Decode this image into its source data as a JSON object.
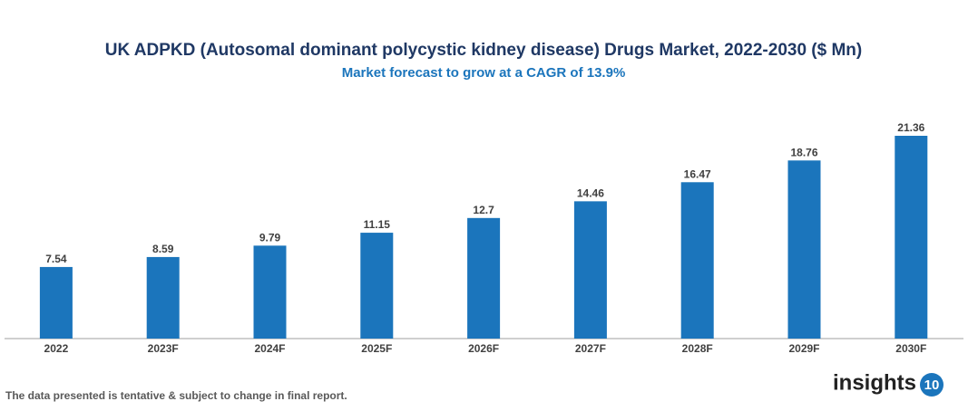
{
  "chart_data": {
    "type": "bar",
    "title": "UK ADPKD (Autosomal dominant polycystic kidney disease) Drugs Market, 2022-2030 ($ Mn)",
    "subtitle": "Market forecast to grow at a CAGR of 13.9%",
    "categories": [
      "2022",
      "2023F",
      "2024F",
      "2025F",
      "2026F",
      "2027F",
      "2028F",
      "2029F",
      "2030F"
    ],
    "values": [
      7.54,
      8.59,
      9.79,
      11.15,
      12.7,
      14.46,
      16.47,
      18.76,
      21.36
    ],
    "color": "#1b75bc",
    "footnote": "The data presented is tentative & subject to change in final report.",
    "logo": {
      "text": "insights",
      "badge": "10"
    }
  }
}
